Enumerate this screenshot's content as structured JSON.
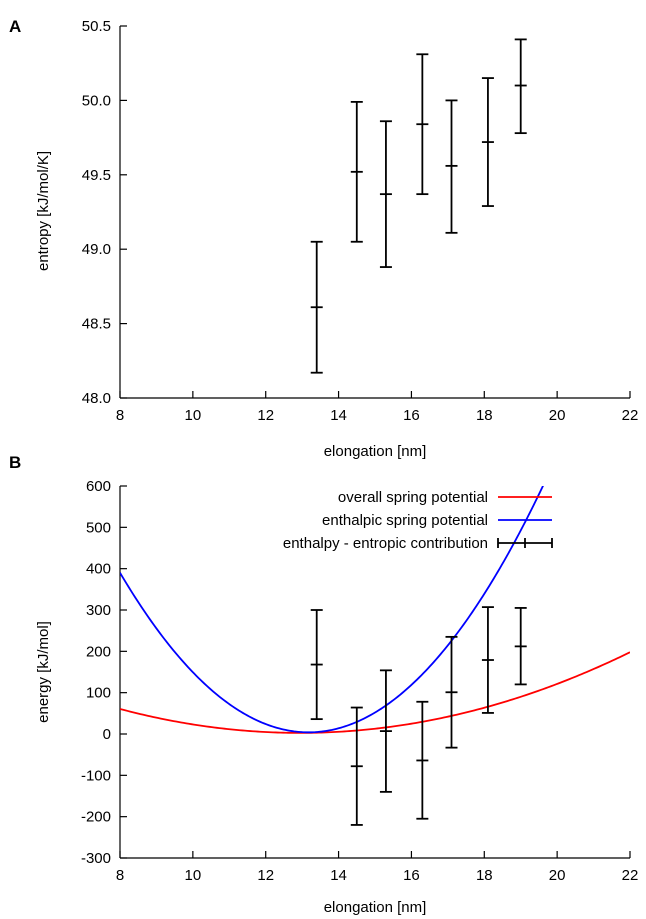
{
  "chart_data": [
    {
      "type": "scatter",
      "panel_label": "A",
      "title": "",
      "xlabel": "elongation [nm]",
      "ylabel": "entropy [kJ/mol/K]",
      "xlim": [
        8,
        22
      ],
      "ylim": [
        48.0,
        50.5
      ],
      "xticks": [
        8,
        10,
        12,
        14,
        16,
        18,
        20,
        22
      ],
      "yticks": [
        48.0,
        48.5,
        49.0,
        49.5,
        50.0,
        50.5
      ],
      "ytick_labels": [
        "48.0",
        "48.5",
        "49.0",
        "49.5",
        "50.0",
        "50.5"
      ],
      "grid": false,
      "series": [
        {
          "style": "errorbar",
          "color": "#000000",
          "points": [
            {
              "x": 13.4,
              "y": 48.61,
              "ylo": 48.17,
              "yhi": 49.05
            },
            {
              "x": 14.5,
              "y": 49.52,
              "ylo": 49.05,
              "yhi": 49.99
            },
            {
              "x": 15.3,
              "y": 49.37,
              "ylo": 48.88,
              "yhi": 49.86
            },
            {
              "x": 16.3,
              "y": 49.84,
              "ylo": 49.37,
              "yhi": 50.31
            },
            {
              "x": 17.1,
              "y": 49.56,
              "ylo": 49.11,
              "yhi": 50.0
            },
            {
              "x": 18.1,
              "y": 49.72,
              "ylo": 49.29,
              "yhi": 50.15
            },
            {
              "x": 19.0,
              "y": 50.1,
              "ylo": 49.78,
              "yhi": 50.41
            }
          ]
        }
      ]
    },
    {
      "type": "line",
      "panel_label": "B",
      "title": "",
      "xlabel": "elongation [nm]",
      "ylabel": "energy [kJ/mol]",
      "xlim": [
        8,
        22
      ],
      "ylim": [
        -300,
        600
      ],
      "xticks": [
        8,
        10,
        12,
        14,
        16,
        18,
        20,
        22
      ],
      "yticks": [
        -300,
        -200,
        -100,
        0,
        100,
        200,
        300,
        400,
        500,
        600
      ],
      "grid": false,
      "legend_position": "top-right",
      "series": [
        {
          "name": "overall spring potential",
          "style": "line",
          "color": "#ff0000",
          "x": [
            8,
            9,
            10,
            11,
            12,
            13,
            13.2,
            14,
            15,
            16,
            17,
            18,
            19,
            20,
            21,
            22
          ],
          "y": [
            60,
            41,
            25,
            13,
            4,
            0,
            0,
            3,
            12,
            26,
            44,
            66,
            92,
            122,
            157,
            195
          ]
        },
        {
          "name": "enthalpic spring potential",
          "style": "line",
          "color": "#0000ff",
          "x": [
            8,
            9,
            10,
            11,
            12,
            13,
            13.2,
            14,
            15,
            16,
            17,
            18,
            19,
            19.65
          ],
          "y": [
            385,
            260,
            155,
            75,
            22,
            1,
            0,
            10,
            50,
            120,
            220,
            345,
            495,
            600
          ]
        },
        {
          "name": "enthalpy - entropic contribution",
          "style": "errorbar",
          "color": "#000000",
          "points": [
            {
              "x": 13.4,
              "y": 168,
              "ylo": 36,
              "yhi": 300
            },
            {
              "x": 14.5,
              "y": -78,
              "ylo": -220,
              "yhi": 64
            },
            {
              "x": 15.3,
              "y": 7,
              "ylo": -140,
              "yhi": 154
            },
            {
              "x": 16.3,
              "y": -64,
              "ylo": -205,
              "yhi": 78
            },
            {
              "x": 17.1,
              "y": 101,
              "ylo": -33,
              "yhi": 235
            },
            {
              "x": 18.1,
              "y": 179,
              "ylo": 51,
              "yhi": 307
            },
            {
              "x": 19.0,
              "y": 212,
              "ylo": 120,
              "yhi": 305
            }
          ]
        }
      ]
    }
  ]
}
